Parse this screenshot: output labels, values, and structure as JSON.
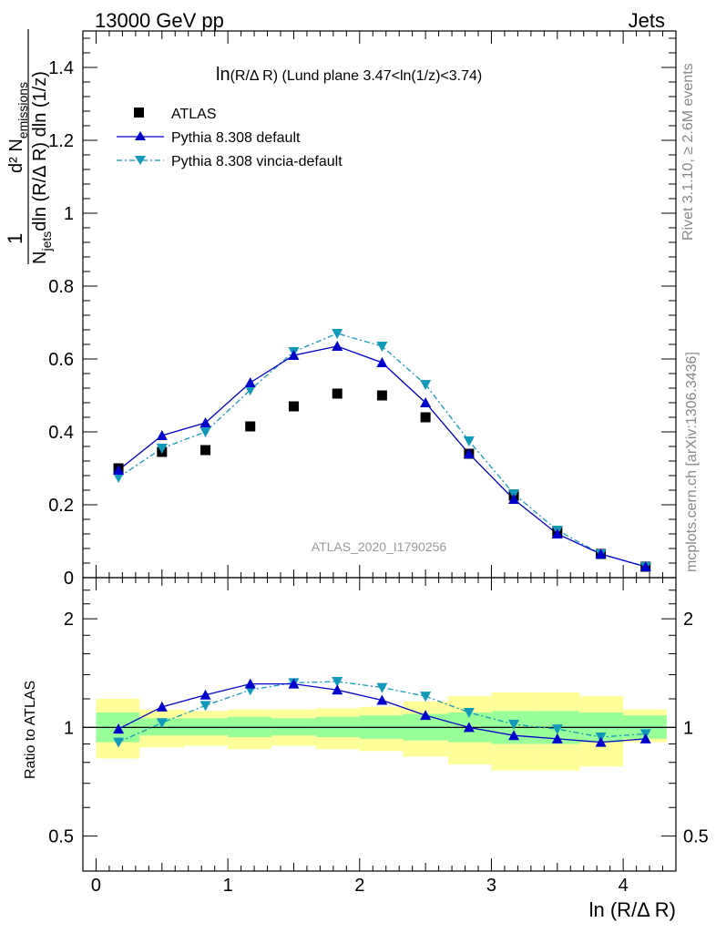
{
  "header": {
    "left": "13000 GeV pp",
    "right": "Jets"
  },
  "side": {
    "rivet": "Rivet 3.1.10, ≥ 2.6M events",
    "mcplots": "mcplots.cern.ch [arXiv:1306.3436]"
  },
  "main_plot": {
    "title": "ln(R/Δ R) (Lund plane 3.47<ln(1/z)<3.74)",
    "title_lead": "ln",
    "title_rest_small": "(R/Δ R)",
    "title_tail": " (Lund plane 3.47<ln(1/z)<3.74)",
    "ylabel": {
      "numerator": "d² N",
      "numerator_sub": "emissions",
      "denominator_lead": "N",
      "denominator_sub": "jets",
      "denominator_rest": "dln (R/Δ R) dln (1/z)",
      "prefix": "1"
    },
    "watermark": "ATLAS_2020_I1790256",
    "ytick_labels": [
      "0",
      "0.2",
      "0.4",
      "0.6",
      "0.8",
      "1",
      "1.2",
      "1.4"
    ]
  },
  "ratio_plot": {
    "ylabel": "Ratio to ATLAS",
    "ytick_labels_left": [
      "0.5",
      "1",
      "2"
    ],
    "ytick_labels_right": [
      "0.5",
      "1",
      "2"
    ]
  },
  "xaxis": {
    "label": "ln (R/Δ R)",
    "tick_labels": [
      "0",
      "1",
      "2",
      "3",
      "4"
    ]
  },
  "legend": {
    "placement": "top-left",
    "entries": [
      {
        "label": "ATLAS",
        "marker": "square",
        "color": "#000000"
      },
      {
        "label": "Pythia 8.308 default",
        "marker": "triangle-up",
        "color": "#0000cc"
      },
      {
        "label": "Pythia 8.308 vincia-default",
        "marker": "triangle-down",
        "color": "#1199bb"
      }
    ]
  },
  "colors": {
    "data": "#000000",
    "default": "#0000cc",
    "vincia": "#1199bb",
    "band_inner": "#99ff99",
    "band_outer": "#ffff99"
  },
  "chart_data": [
    {
      "type": "scatter",
      "panel": "main",
      "title": "ln(R/Δ R) (Lund plane 3.47<ln(1/z)<3.74)",
      "xlim": [
        -0.1,
        4.4
      ],
      "ylim": [
        0,
        1.5
      ],
      "x": [
        0.17,
        0.5,
        0.83,
        1.17,
        1.5,
        1.83,
        2.17,
        2.5,
        2.83,
        3.17,
        3.5,
        3.83,
        4.17
      ],
      "series": [
        {
          "name": "ATLAS",
          "values": [
            0.3,
            0.345,
            0.35,
            0.415,
            0.47,
            0.505,
            0.5,
            0.44,
            0.34,
            0.225,
            0.125,
            0.065,
            0.03
          ]
        },
        {
          "name": "Pythia 8.308 default",
          "values": [
            0.295,
            0.39,
            0.425,
            0.535,
            0.61,
            0.635,
            0.59,
            0.48,
            0.34,
            0.215,
            0.12,
            0.065,
            0.03
          ]
        },
        {
          "name": "Pythia 8.308 vincia-default",
          "values": [
            0.275,
            0.355,
            0.4,
            0.515,
            0.62,
            0.67,
            0.635,
            0.53,
            0.375,
            0.23,
            0.13,
            0.065,
            0.03
          ]
        }
      ]
    },
    {
      "type": "line",
      "panel": "ratio",
      "ylabel": "Ratio to ATLAS",
      "yscale": "log",
      "xlim": [
        -0.1,
        4.4
      ],
      "ylim": [
        0.4,
        2.6
      ],
      "x": [
        0.17,
        0.5,
        0.83,
        1.17,
        1.5,
        1.83,
        2.17,
        2.5,
        2.83,
        3.17,
        3.5,
        3.83,
        4.17
      ],
      "bin_edges": [
        0,
        0.33,
        0.67,
        1.0,
        1.33,
        1.67,
        2.0,
        2.33,
        2.67,
        3.0,
        3.33,
        3.67,
        4.0,
        4.33
      ],
      "series": [
        {
          "name": "Pythia 8.308 default",
          "values": [
            0.99,
            1.14,
            1.23,
            1.32,
            1.32,
            1.27,
            1.19,
            1.08,
            1.0,
            0.95,
            0.93,
            0.91,
            0.93
          ]
        },
        {
          "name": "Pythia 8.308 vincia-default",
          "values": [
            0.91,
            1.03,
            1.15,
            1.27,
            1.33,
            1.34,
            1.29,
            1.22,
            1.1,
            1.02,
            0.99,
            0.94,
            0.96
          ]
        }
      ],
      "band_inner": {
        "lo": [
          0.91,
          0.95,
          0.95,
          0.94,
          0.95,
          0.94,
          0.93,
          0.92,
          0.91,
          0.9,
          0.9,
          0.91,
          0.93
        ],
        "hi": [
          1.1,
          1.06,
          1.06,
          1.07,
          1.06,
          1.07,
          1.08,
          1.09,
          1.1,
          1.11,
          1.11,
          1.1,
          1.08
        ]
      },
      "band_outer": {
        "lo": [
          0.82,
          0.88,
          0.89,
          0.87,
          0.89,
          0.87,
          0.86,
          0.83,
          0.79,
          0.76,
          0.76,
          0.78,
          0.91
        ],
        "hi": [
          1.2,
          1.12,
          1.11,
          1.12,
          1.12,
          1.13,
          1.14,
          1.18,
          1.22,
          1.25,
          1.25,
          1.22,
          1.12
        ]
      },
      "reference_line": 1
    }
  ]
}
